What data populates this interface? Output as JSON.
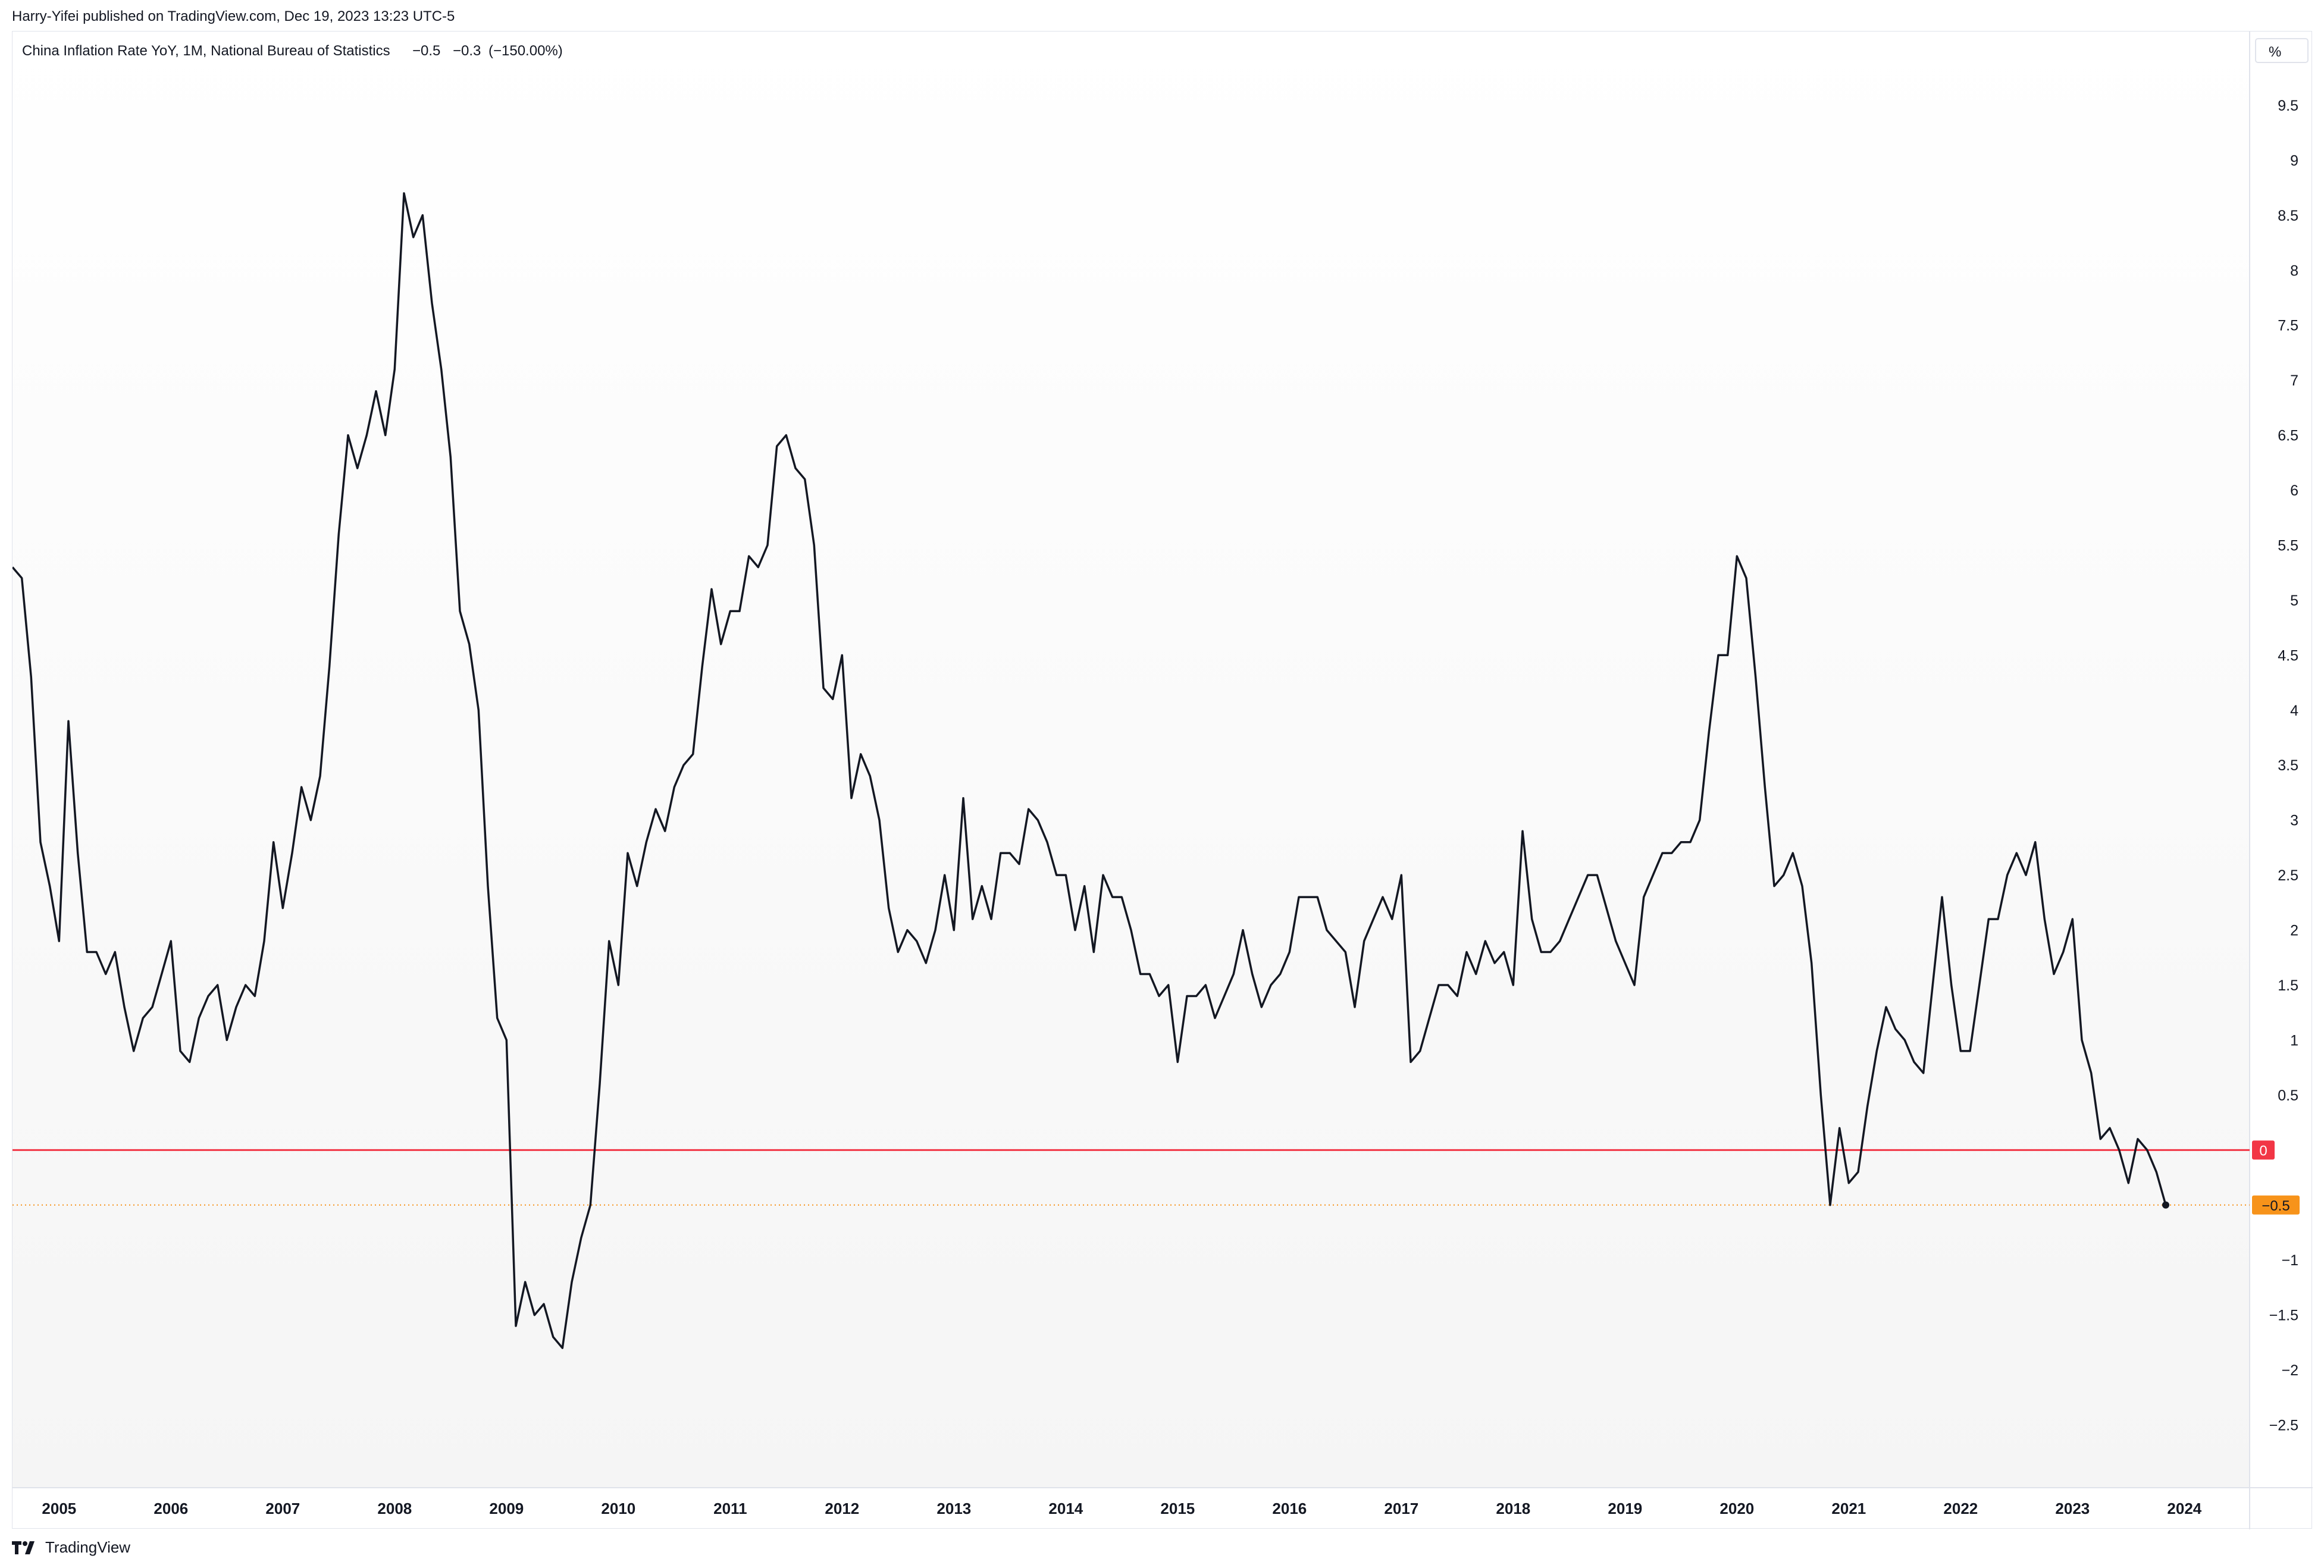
{
  "header": {
    "publisher_line": "Harry-Yifei published on TradingView.com, Dec 19, 2023 13:23 UTC-5"
  },
  "legend": {
    "title": "China Inflation Rate YoY, 1M, National Bureau of Statistics",
    "last": "−0.5",
    "change": "−0.3",
    "change_pct": "(−150.00%)"
  },
  "y_axis": {
    "unit_label": "%",
    "tick_labels": [
      "9.5",
      "9",
      "8.5",
      "8",
      "7.5",
      "7",
      "6.5",
      "6",
      "5.5",
      "5",
      "4.5",
      "4",
      "3.5",
      "3",
      "2.5",
      "2",
      "1.5",
      "1",
      "0.5",
      "0",
      "−0.5",
      "−1",
      "−1.5",
      "−2",
      "−2.5"
    ]
  },
  "badges": {
    "zero_label": "0",
    "last_label": "−0.5",
    "zero_color": "#f23645",
    "last_color": "#f7931a"
  },
  "footer": {
    "brand": "TradingView"
  },
  "colors": {
    "line": "#131722",
    "zero_line": "#f23645",
    "last_dotted": "#f7931a",
    "plot_bg_top": "#ffffff",
    "plot_bg_bottom": "#f7f7f7"
  },
  "chart_data": {
    "type": "line",
    "title": "China Inflation Rate YoY, 1M, National Bureau of Statistics",
    "xlabel": "",
    "ylabel": "%",
    "ylim": [
      -2.8,
      9.9
    ],
    "x_tick_labels": [
      "2005",
      "2006",
      "2007",
      "2008",
      "2009",
      "2010",
      "2011",
      "2012",
      "2013",
      "2014",
      "2015",
      "2016",
      "2017",
      "2018",
      "2019",
      "2020",
      "2021",
      "2022",
      "2023",
      "2024"
    ],
    "grid": false,
    "series": [
      {
        "name": "China Inflation Rate YoY",
        "x": [
          "2004-08",
          "2004-09",
          "2004-10",
          "2004-11",
          "2004-12",
          "2005-01",
          "2005-02",
          "2005-03",
          "2005-04",
          "2005-05",
          "2005-06",
          "2005-07",
          "2005-08",
          "2005-09",
          "2005-10",
          "2005-11",
          "2005-12",
          "2006-01",
          "2006-02",
          "2006-03",
          "2006-04",
          "2006-05",
          "2006-06",
          "2006-07",
          "2006-08",
          "2006-09",
          "2006-10",
          "2006-11",
          "2006-12",
          "2007-01",
          "2007-02",
          "2007-03",
          "2007-04",
          "2007-05",
          "2007-06",
          "2007-07",
          "2007-08",
          "2007-09",
          "2007-10",
          "2007-11",
          "2007-12",
          "2008-01",
          "2008-02",
          "2008-03",
          "2008-04",
          "2008-05",
          "2008-06",
          "2008-07",
          "2008-08",
          "2008-09",
          "2008-10",
          "2008-11",
          "2008-12",
          "2009-01",
          "2009-02",
          "2009-03",
          "2009-04",
          "2009-05",
          "2009-06",
          "2009-07",
          "2009-08",
          "2009-09",
          "2009-10",
          "2009-11",
          "2009-12",
          "2010-01",
          "2010-02",
          "2010-03",
          "2010-04",
          "2010-05",
          "2010-06",
          "2010-07",
          "2010-08",
          "2010-09",
          "2010-10",
          "2010-11",
          "2010-12",
          "2011-01",
          "2011-02",
          "2011-03",
          "2011-04",
          "2011-05",
          "2011-06",
          "2011-07",
          "2011-08",
          "2011-09",
          "2011-10",
          "2011-11",
          "2011-12",
          "2012-01",
          "2012-02",
          "2012-03",
          "2012-04",
          "2012-05",
          "2012-06",
          "2012-07",
          "2012-08",
          "2012-09",
          "2012-10",
          "2012-11",
          "2012-12",
          "2013-01",
          "2013-02",
          "2013-03",
          "2013-04",
          "2013-05",
          "2013-06",
          "2013-07",
          "2013-08",
          "2013-09",
          "2013-10",
          "2013-11",
          "2013-12",
          "2014-01",
          "2014-02",
          "2014-03",
          "2014-04",
          "2014-05",
          "2014-06",
          "2014-07",
          "2014-08",
          "2014-09",
          "2014-10",
          "2014-11",
          "2014-12",
          "2015-01",
          "2015-02",
          "2015-03",
          "2015-04",
          "2015-05",
          "2015-06",
          "2015-07",
          "2015-08",
          "2015-09",
          "2015-10",
          "2015-11",
          "2015-12",
          "2016-01",
          "2016-02",
          "2016-03",
          "2016-04",
          "2016-05",
          "2016-06",
          "2016-07",
          "2016-08",
          "2016-09",
          "2016-10",
          "2016-11",
          "2016-12",
          "2017-01",
          "2017-02",
          "2017-03",
          "2017-04",
          "2017-05",
          "2017-06",
          "2017-07",
          "2017-08",
          "2017-09",
          "2017-10",
          "2017-11",
          "2017-12",
          "2018-01",
          "2018-02",
          "2018-03",
          "2018-04",
          "2018-05",
          "2018-06",
          "2018-07",
          "2018-08",
          "2018-09",
          "2018-10",
          "2018-11",
          "2018-12",
          "2019-01",
          "2019-02",
          "2019-03",
          "2019-04",
          "2019-05",
          "2019-06",
          "2019-07",
          "2019-08",
          "2019-09",
          "2019-10",
          "2019-11",
          "2019-12",
          "2020-01",
          "2020-02",
          "2020-03",
          "2020-04",
          "2020-05",
          "2020-06",
          "2020-07",
          "2020-08",
          "2020-09",
          "2020-10",
          "2020-11",
          "2020-12",
          "2021-01",
          "2021-02",
          "2021-03",
          "2021-04",
          "2021-05",
          "2021-06",
          "2021-07",
          "2021-08",
          "2021-09",
          "2021-10",
          "2021-11",
          "2021-12",
          "2022-01",
          "2022-02",
          "2022-03",
          "2022-04",
          "2022-05",
          "2022-06",
          "2022-07",
          "2022-08",
          "2022-09",
          "2022-10",
          "2022-11",
          "2022-12",
          "2023-01",
          "2023-02",
          "2023-03",
          "2023-04",
          "2023-05",
          "2023-06",
          "2023-07",
          "2023-08",
          "2023-09",
          "2023-10",
          "2023-11"
        ],
        "values": [
          5.3,
          5.2,
          4.3,
          2.8,
          2.4,
          1.9,
          3.9,
          2.7,
          1.8,
          1.8,
          1.6,
          1.8,
          1.3,
          0.9,
          1.2,
          1.3,
          1.6,
          1.9,
          0.9,
          0.8,
          1.2,
          1.4,
          1.5,
          1.0,
          1.3,
          1.5,
          1.4,
          1.9,
          2.8,
          2.2,
          2.7,
          3.3,
          3.0,
          3.4,
          4.4,
          5.6,
          6.5,
          6.2,
          6.5,
          6.9,
          6.5,
          7.1,
          8.7,
          8.3,
          8.5,
          7.7,
          7.1,
          6.3,
          4.9,
          4.6,
          4.0,
          2.4,
          1.2,
          1.0,
          -1.6,
          -1.2,
          -1.5,
          -1.4,
          -1.7,
          -1.8,
          -1.2,
          -0.8,
          -0.5,
          0.6,
          1.9,
          1.5,
          2.7,
          2.4,
          2.8,
          3.1,
          2.9,
          3.3,
          3.5,
          3.6,
          4.4,
          5.1,
          4.6,
          4.9,
          4.9,
          5.4,
          5.3,
          5.5,
          6.4,
          6.5,
          6.2,
          6.1,
          5.5,
          4.2,
          4.1,
          4.5,
          3.2,
          3.6,
          3.4,
          3.0,
          2.2,
          1.8,
          2.0,
          1.9,
          1.7,
          2.0,
          2.5,
          2.0,
          3.2,
          2.1,
          2.4,
          2.1,
          2.7,
          2.7,
          2.6,
          3.1,
          3.0,
          2.8,
          2.5,
          2.5,
          2.0,
          2.4,
          1.8,
          2.5,
          2.3,
          2.3,
          2.0,
          1.6,
          1.6,
          1.4,
          1.5,
          0.8,
          1.4,
          1.4,
          1.5,
          1.2,
          1.4,
          1.6,
          2.0,
          1.6,
          1.3,
          1.5,
          1.6,
          1.8,
          2.3,
          2.3,
          2.3,
          2.0,
          1.9,
          1.8,
          1.3,
          1.9,
          2.1,
          2.3,
          2.1,
          2.5,
          0.8,
          0.9,
          1.2,
          1.5,
          1.5,
          1.4,
          1.8,
          1.6,
          1.9,
          1.7,
          1.8,
          1.5,
          2.9,
          2.1,
          1.8,
          1.8,
          1.9,
          2.1,
          2.3,
          2.5,
          2.5,
          2.2,
          1.9,
          1.7,
          1.5,
          2.3,
          2.5,
          2.7,
          2.7,
          2.8,
          2.8,
          3.0,
          3.8,
          4.5,
          4.5,
          5.4,
          5.2,
          4.3,
          3.3,
          2.4,
          2.5,
          2.7,
          2.4,
          1.7,
          0.5,
          -0.5,
          0.2,
          -0.3,
          -0.2,
          0.4,
          0.9,
          1.3,
          1.1,
          1.0,
          0.8,
          0.7,
          1.5,
          2.3,
          1.5,
          0.9,
          0.9,
          1.5,
          2.1,
          2.1,
          2.5,
          2.7,
          2.5,
          2.8,
          2.1,
          1.6,
          1.8,
          2.1,
          1.0,
          0.7,
          0.1,
          0.2,
          0.0,
          -0.3,
          0.1,
          0.0,
          -0.2,
          -0.5
        ]
      }
    ]
  }
}
